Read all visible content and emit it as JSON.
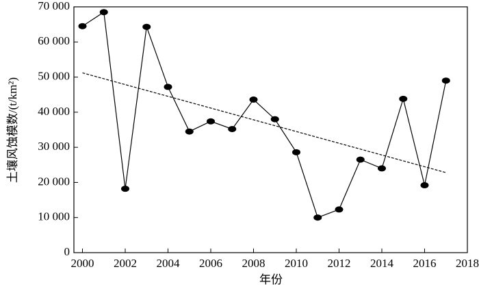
{
  "chart_data": {
    "type": "line",
    "x_label": "年份",
    "y_label": "土壤风蚀模数/(t/km²)",
    "x": [
      2000,
      2001,
      2002,
      2003,
      2004,
      2005,
      2006,
      2007,
      2008,
      2009,
      2010,
      2011,
      2012,
      2013,
      2014,
      2015,
      2016,
      2017
    ],
    "series": [
      {
        "color": "#000000",
        "marker": "ellipse",
        "values": [
          64500,
          68500,
          18200,
          64300,
          47200,
          34500,
          37400,
          35200,
          43600,
          38000,
          28600,
          10000,
          12300,
          26500,
          24000,
          43800,
          19200,
          49000
        ]
      }
    ],
    "trendline": {
      "x": [
        2000,
        2017
      ],
      "values": [
        51200,
        22800
      ],
      "color": "#000000",
      "style": "dashed"
    },
    "xlim": [
      1999.6,
      2018
    ],
    "ylim": [
      0,
      70000
    ],
    "xticks": [
      2000,
      2002,
      2004,
      2006,
      2008,
      2010,
      2012,
      2014,
      2016,
      2018
    ],
    "yticks": [
      0,
      {
        "value": 10000,
        "label": "10 000"
      },
      {
        "value": 20000,
        "label": "20 000"
      },
      {
        "value": 30000,
        "label": "30 000"
      },
      {
        "value": 40000,
        "label": "40 000"
      },
      {
        "value": 50000,
        "label": "50 000"
      },
      {
        "value": 60000,
        "label": "60 000"
      },
      {
        "value": 70000,
        "label": "70 000"
      }
    ]
  }
}
